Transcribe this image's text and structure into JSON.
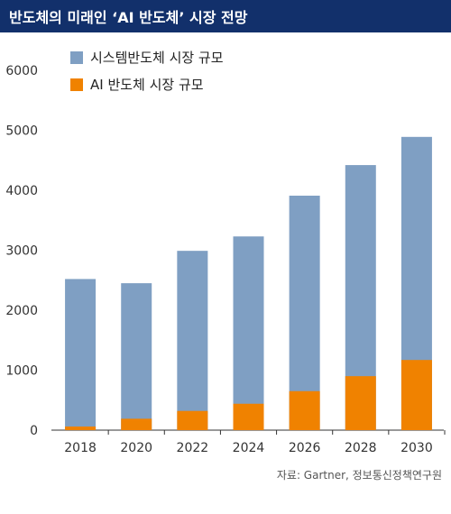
{
  "title": "반도체의 미래인 ‘AI 반도체’ 시장 전망",
  "source": "자료: Gartner, 정보통신정책연구원",
  "colors": {
    "title_bg": "#12306b",
    "system": "#7f9fc3",
    "ai": "#f08200"
  },
  "chart_data": {
    "type": "bar",
    "stacked": true,
    "categories": [
      "2018",
      "2020",
      "2022",
      "2024",
      "2026",
      "2028",
      "2030"
    ],
    "series": [
      {
        "name": "시스템반도체 시장 규모",
        "values": [
          2520,
          2450,
          2990,
          3230,
          3910,
          4420,
          4890
        ],
        "color": "#7f9fc3"
      },
      {
        "name": "AI 반도체 시장 규모",
        "values": [
          60,
          190,
          320,
          440,
          650,
          900,
          1170
        ],
        "color": "#f08200"
      }
    ],
    "overlay": true,
    "yticks": [
      0,
      1000,
      2000,
      3000,
      4000,
      5000,
      6000
    ],
    "ylim": [
      0,
      6000
    ],
    "legend": "top-left",
    "grid": false
  }
}
